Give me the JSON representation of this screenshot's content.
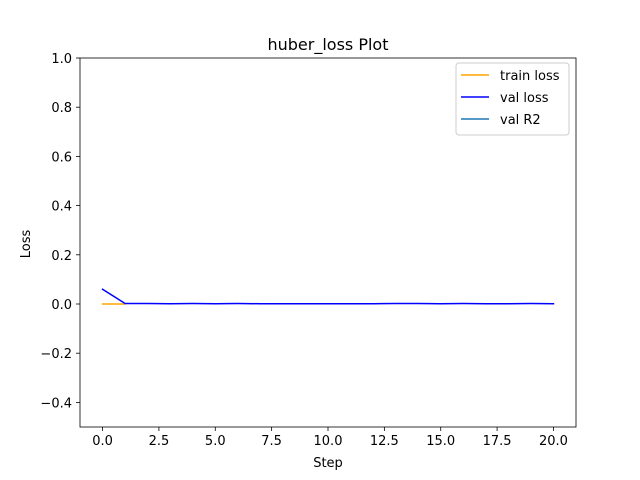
{
  "chart_data": {
    "type": "line",
    "title": "huber_loss Plot",
    "xlabel": "Step",
    "ylabel": "Loss",
    "xlim": [
      -1.0,
      21.0
    ],
    "ylim": [
      -0.5,
      1.0
    ],
    "xticks": [
      0.0,
      2.5,
      5.0,
      7.5,
      10.0,
      12.5,
      15.0,
      17.5,
      20.0
    ],
    "xtick_labels": [
      "0.0",
      "2.5",
      "5.0",
      "7.5",
      "10.0",
      "12.5",
      "15.0",
      "17.5",
      "20.0"
    ],
    "yticks": [
      -0.4,
      -0.2,
      0.0,
      0.2,
      0.4,
      0.6,
      0.8,
      1.0
    ],
    "ytick_labels": [
      "−0.4",
      "−0.2",
      "0.0",
      "0.2",
      "0.4",
      "0.6",
      "0.8",
      "1.0"
    ],
    "grid": false,
    "legend_position": "top-right",
    "series": [
      {
        "name": "train loss",
        "color": "#ffa500",
        "x": [
          0,
          1
        ],
        "y": [
          0.0,
          0.0
        ]
      },
      {
        "name": "val loss",
        "color": "#0000ff",
        "x": [
          0,
          1,
          2,
          3,
          4,
          5,
          6,
          7,
          8,
          9,
          10,
          11,
          12,
          13,
          14,
          15,
          16,
          17,
          18,
          19,
          20
        ],
        "y": [
          0.06,
          0.002,
          0.002,
          0.001,
          0.002,
          0.001,
          0.002,
          0.001,
          0.001,
          0.001,
          0.001,
          0.001,
          0.001,
          0.002,
          0.002,
          0.001,
          0.002,
          0.001,
          0.001,
          0.002,
          0.001
        ]
      },
      {
        "name": "val R2",
        "color": "#1f77b4",
        "x": [],
        "y": []
      }
    ]
  }
}
